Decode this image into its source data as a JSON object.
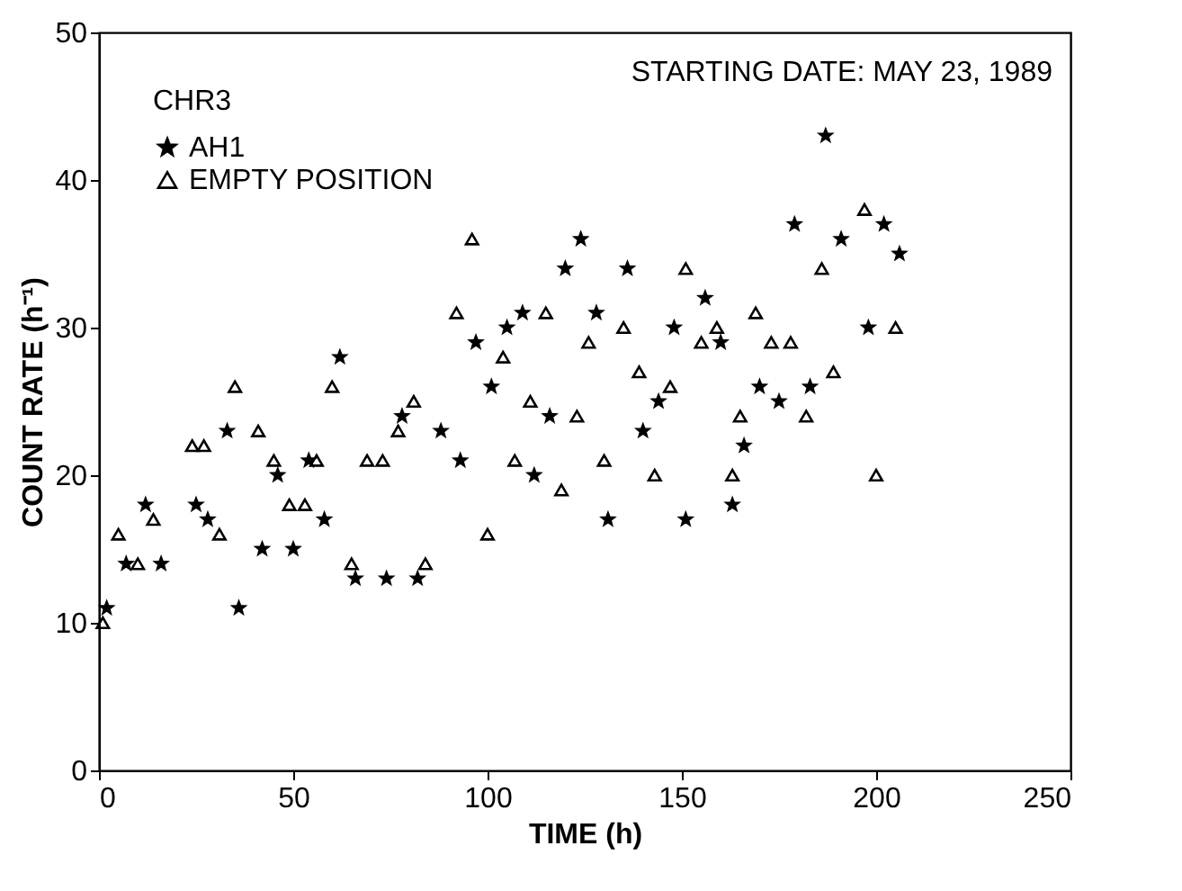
{
  "chart_data": {
    "type": "scatter",
    "xlabel": "TIME (h)",
    "ylabel": "COUNT RATE (h⁻¹)",
    "legend_title": "CHR3",
    "legend": "top left",
    "annotations": [
      "STARTING DATE: MAY 23, 1989"
    ],
    "xlim": [
      0,
      250
    ],
    "xticks": [
      0,
      50,
      100,
      150,
      200,
      250
    ],
    "ylim": [
      0,
      50
    ],
    "yticks": [
      0,
      10,
      20,
      30,
      40,
      50
    ],
    "series": [
      {
        "name": "AH1",
        "color": "#000000",
        "marker": "star",
        "x": [
          2,
          7,
          12,
          16,
          25,
          28,
          33,
          36,
          42,
          46,
          50,
          54,
          58,
          62,
          66,
          74,
          78,
          82,
          88,
          93,
          97,
          101,
          105,
          109,
          112,
          116,
          120,
          124,
          128,
          131,
          136,
          140,
          144,
          148,
          151,
          156,
          160,
          163,
          166,
          170,
          175,
          179,
          183,
          187,
          191,
          198,
          202,
          206
        ],
        "values": [
          11,
          14,
          18,
          14,
          18,
          17,
          23,
          11,
          15,
          20,
          15,
          21,
          17,
          28,
          13,
          13,
          24,
          13,
          23,
          21,
          29,
          26,
          30,
          31,
          20,
          24,
          34,
          36,
          31,
          17,
          34,
          23,
          25,
          30,
          17,
          32,
          29,
          18,
          22,
          26,
          25,
          37,
          26,
          43,
          36,
          30,
          37,
          35
        ]
      },
      {
        "name": "EMPTY POSITION",
        "color": "#000000",
        "marker": "triangle",
        "x": [
          1,
          5,
          10,
          14,
          24,
          27,
          31,
          35,
          41,
          45,
          49,
          53,
          56,
          60,
          65,
          69,
          73,
          77,
          81,
          84,
          92,
          96,
          100,
          104,
          107,
          111,
          115,
          119,
          123,
          126,
          130,
          135,
          139,
          143,
          147,
          151,
          155,
          159,
          163,
          165,
          169,
          173,
          178,
          182,
          186,
          189,
          197,
          200,
          205
        ],
        "values": [
          10,
          16,
          14,
          17,
          22,
          22,
          16,
          26,
          23,
          21,
          18,
          18,
          21,
          26,
          14,
          21,
          21,
          23,
          25,
          14,
          31,
          36,
          16,
          28,
          21,
          25,
          31,
          19,
          24,
          29,
          21,
          30,
          27,
          20,
          26,
          34,
          29,
          30,
          20,
          24,
          31,
          29,
          29,
          24,
          34,
          27,
          38,
          20,
          30
        ]
      }
    ]
  }
}
